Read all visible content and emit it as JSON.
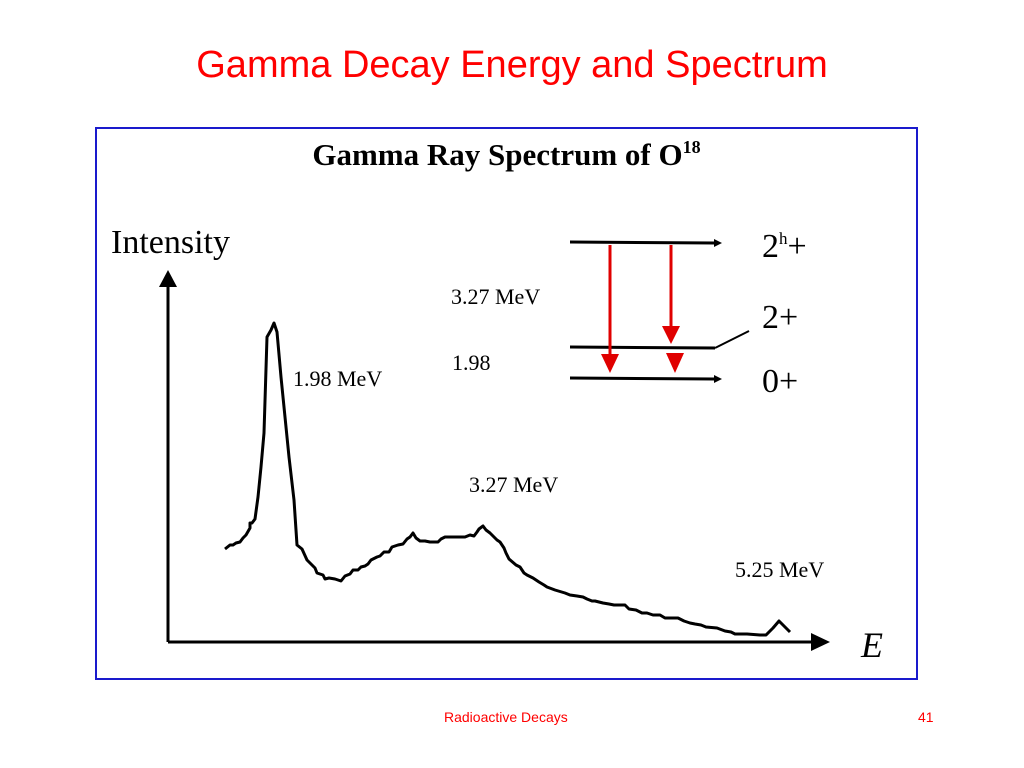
{
  "slide": {
    "title": "Gamma Decay Energy and Spectrum",
    "footer_left": "Radioactive Decays",
    "page_number": "41"
  },
  "figure": {
    "title_main": "Gamma Ray Spectrum of O",
    "title_sup": "18",
    "y_axis_label": "Intensity",
    "x_axis_label": "E",
    "peaks": {
      "peak1": "1.98 MeV",
      "peak2": "3.27 MeV",
      "peak3": "5.25 MeV"
    },
    "level_diagram": {
      "transition_top": "3.27 MeV",
      "transition_mid": "1.98",
      "levels": [
        "2h+",
        "2+",
        "0+"
      ],
      "level_top_base": "2",
      "level_top_sup": "h",
      "level_top_suffix": "+",
      "arrow_color": "#e00000"
    }
  },
  "colors": {
    "title": "#ff0000",
    "frame": "#1a1acc",
    "footer": "#ff0000"
  }
}
